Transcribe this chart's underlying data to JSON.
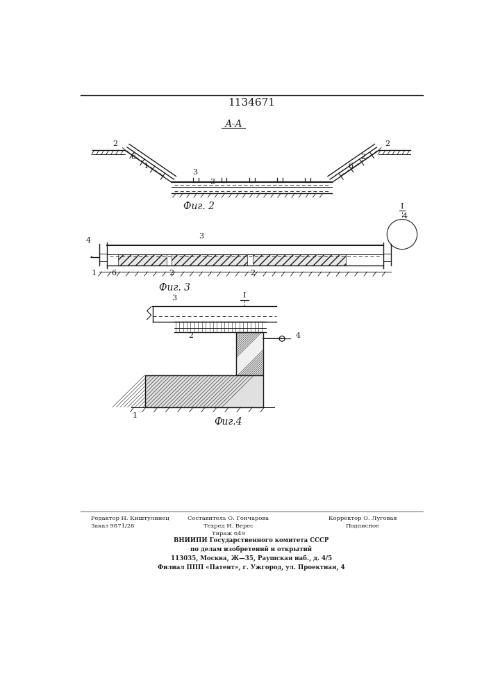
{
  "patent_number": "1134671",
  "fig2_label": "А-А",
  "fig2_caption": "Фиг. 2",
  "fig3_caption": "Фиг. 3",
  "fig4_caption": "Фиг.4",
  "bg_color": "#ffffff",
  "line_color": "#1a1a1a",
  "footer_text_left": "Редактор Н. Киштулинец\nЗаказ 9871/28",
  "footer_text_center_top": "Составитель О. Гончарова\nТехред И. Верес\nТираж 649",
  "footer_text_center_right": "Корректор О. Луговая\nПодписное",
  "footer_bold": "ВНИИПИ Государственного комитета СССР\nпо делам изобретений и открытий\n113035, Москва, Ж—35, Раушская наб., д. 4/5\nФилиал ППП «Патент», г. Ужгород, ул. Проектная, 4"
}
